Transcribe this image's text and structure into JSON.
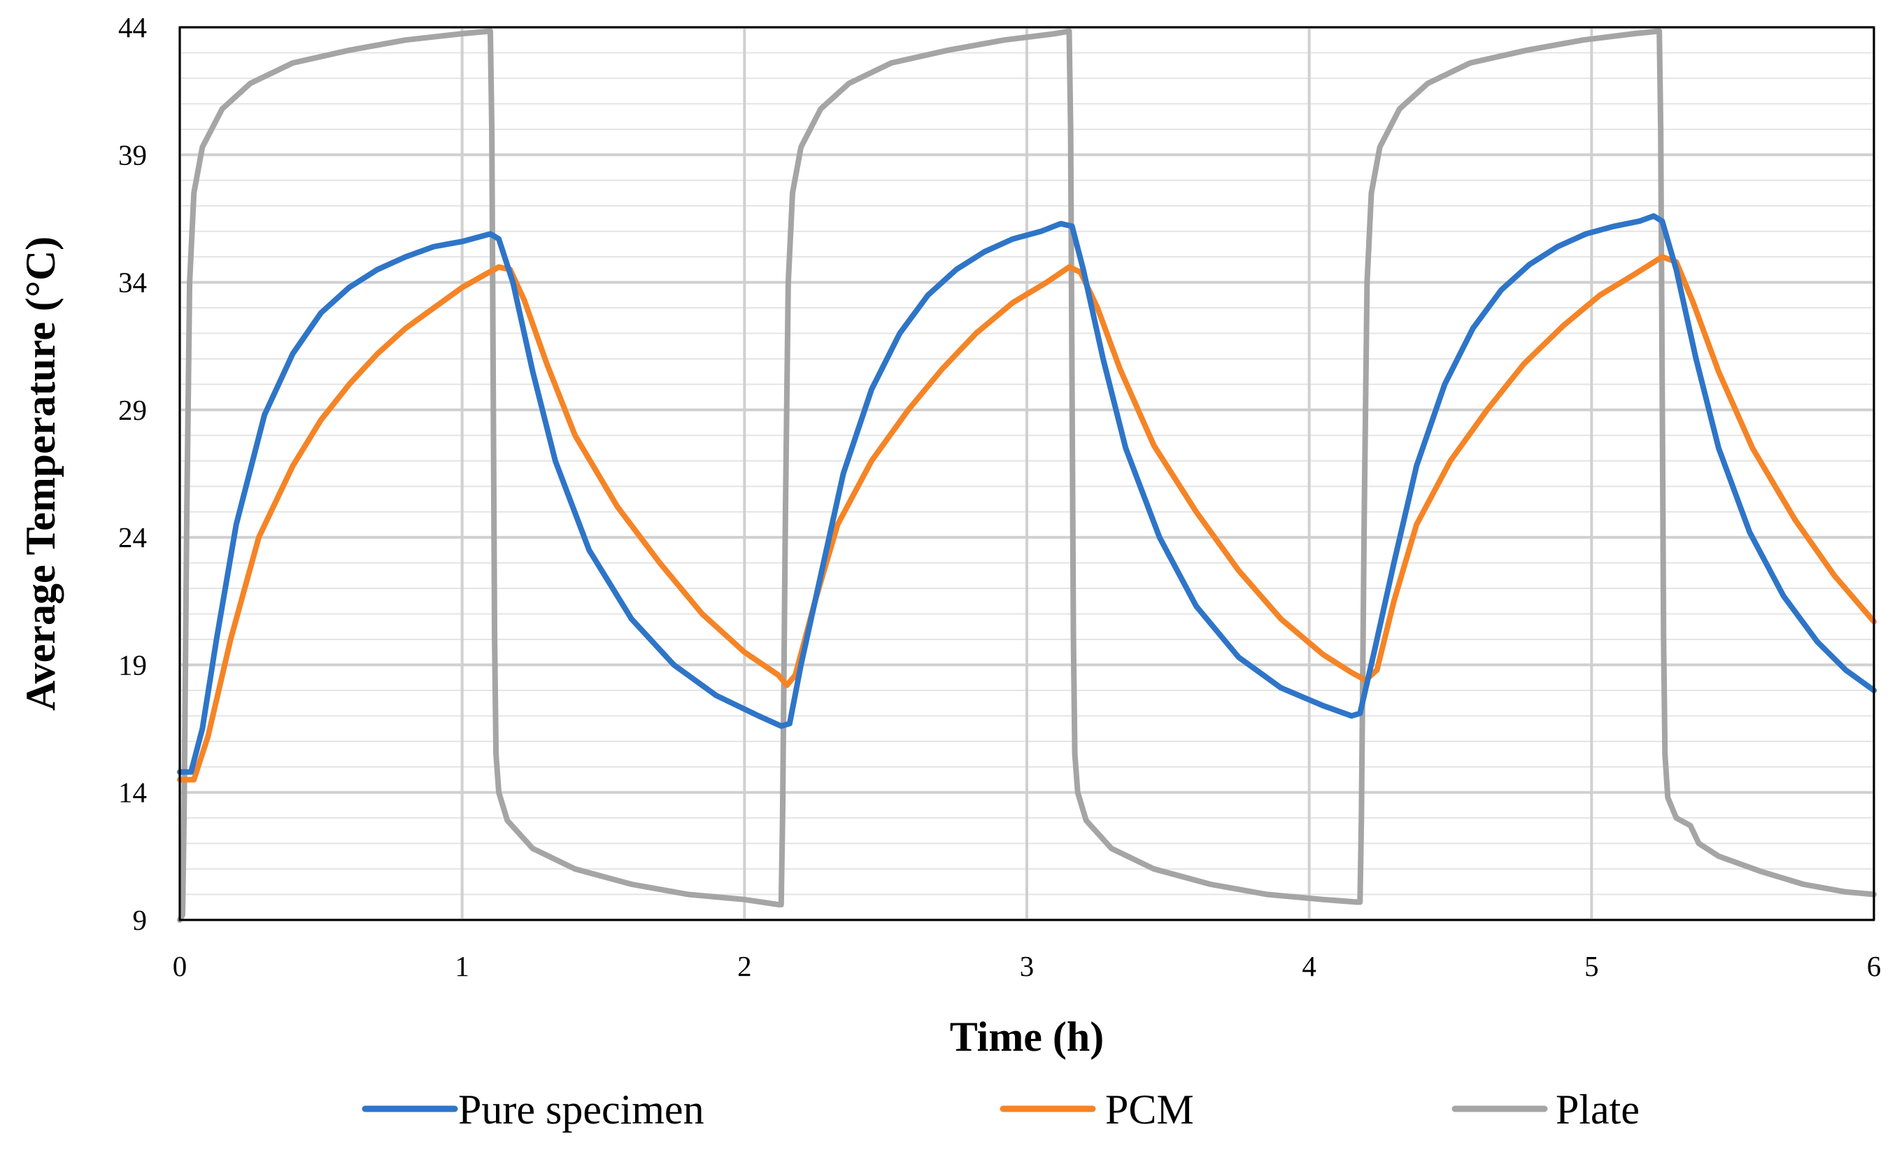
{
  "chart_data": {
    "type": "line",
    "title": "",
    "xlabel": "Time (h)",
    "ylabel": "Average Temperature (°C)",
    "xlim": [
      0,
      6
    ],
    "ylim": [
      9,
      44
    ],
    "xticks": [
      "0",
      "1",
      "2",
      "3",
      "4",
      "5",
      "6"
    ],
    "yticks": [
      "9",
      "14",
      "19",
      "24",
      "29",
      "34",
      "39",
      "44"
    ],
    "minor_y_step": 1,
    "grid": true,
    "legend_position": "bottom",
    "series": [
      {
        "name": "Pure specimen",
        "color": "#2E75C8",
        "points": [
          [
            0,
            14.8
          ],
          [
            0.04,
            14.8
          ],
          [
            0.08,
            16.5
          ],
          [
            0.13,
            20
          ],
          [
            0.2,
            24.5
          ],
          [
            0.3,
            28.8
          ],
          [
            0.4,
            31.2
          ],
          [
            0.5,
            32.8
          ],
          [
            0.6,
            33.8
          ],
          [
            0.7,
            34.5
          ],
          [
            0.8,
            35.0
          ],
          [
            0.9,
            35.4
          ],
          [
            1.0,
            35.6
          ],
          [
            1.05,
            35.75
          ],
          [
            1.1,
            35.9
          ],
          [
            1.13,
            35.7
          ],
          [
            1.18,
            34.0
          ],
          [
            1.25,
            30.5
          ],
          [
            1.33,
            27.0
          ],
          [
            1.45,
            23.5
          ],
          [
            1.6,
            20.8
          ],
          [
            1.75,
            19.0
          ],
          [
            1.9,
            17.8
          ],
          [
            2.05,
            17.0
          ],
          [
            2.13,
            16.6
          ],
          [
            2.16,
            16.7
          ],
          [
            2.2,
            19.0
          ],
          [
            2.27,
            22.5
          ],
          [
            2.35,
            26.5
          ],
          [
            2.45,
            29.8
          ],
          [
            2.55,
            32.0
          ],
          [
            2.65,
            33.5
          ],
          [
            2.75,
            34.5
          ],
          [
            2.85,
            35.2
          ],
          [
            2.95,
            35.7
          ],
          [
            3.05,
            36.0
          ],
          [
            3.12,
            36.3
          ],
          [
            3.16,
            36.2
          ],
          [
            3.2,
            34.5
          ],
          [
            3.27,
            31.0
          ],
          [
            3.35,
            27.5
          ],
          [
            3.47,
            24.0
          ],
          [
            3.6,
            21.3
          ],
          [
            3.75,
            19.3
          ],
          [
            3.9,
            18.1
          ],
          [
            4.05,
            17.4
          ],
          [
            4.15,
            17.0
          ],
          [
            4.18,
            17.1
          ],
          [
            4.23,
            19.5
          ],
          [
            4.3,
            23.0
          ],
          [
            4.38,
            26.8
          ],
          [
            4.48,
            30.0
          ],
          [
            4.58,
            32.2
          ],
          [
            4.68,
            33.7
          ],
          [
            4.78,
            34.7
          ],
          [
            4.88,
            35.4
          ],
          [
            4.98,
            35.9
          ],
          [
            5.08,
            36.2
          ],
          [
            5.17,
            36.4
          ],
          [
            5.22,
            36.6
          ],
          [
            5.25,
            36.4
          ],
          [
            5.3,
            34.5
          ],
          [
            5.37,
            31.0
          ],
          [
            5.45,
            27.5
          ],
          [
            5.56,
            24.2
          ],
          [
            5.68,
            21.7
          ],
          [
            5.8,
            19.9
          ],
          [
            5.9,
            18.8
          ],
          [
            6.0,
            18.0
          ]
        ]
      },
      {
        "name": "PCM",
        "color": "#F58426",
        "points": [
          [
            0,
            14.5
          ],
          [
            0.05,
            14.5
          ],
          [
            0.1,
            16.2
          ],
          [
            0.18,
            20.0
          ],
          [
            0.28,
            24.0
          ],
          [
            0.4,
            26.8
          ],
          [
            0.5,
            28.6
          ],
          [
            0.6,
            30.0
          ],
          [
            0.7,
            31.2
          ],
          [
            0.8,
            32.2
          ],
          [
            0.9,
            33.0
          ],
          [
            1.0,
            33.8
          ],
          [
            1.08,
            34.3
          ],
          [
            1.13,
            34.6
          ],
          [
            1.17,
            34.5
          ],
          [
            1.22,
            33.3
          ],
          [
            1.3,
            30.8
          ],
          [
            1.4,
            28.0
          ],
          [
            1.55,
            25.2
          ],
          [
            1.7,
            23.0
          ],
          [
            1.85,
            21.0
          ],
          [
            2.0,
            19.5
          ],
          [
            2.12,
            18.6
          ],
          [
            2.15,
            18.2
          ],
          [
            2.18,
            18.6
          ],
          [
            2.25,
            21.5
          ],
          [
            2.33,
            24.5
          ],
          [
            2.45,
            27.0
          ],
          [
            2.58,
            29.0
          ],
          [
            2.7,
            30.6
          ],
          [
            2.82,
            32.0
          ],
          [
            2.95,
            33.2
          ],
          [
            3.07,
            34.0
          ],
          [
            3.15,
            34.6
          ],
          [
            3.19,
            34.4
          ],
          [
            3.25,
            33.0
          ],
          [
            3.33,
            30.6
          ],
          [
            3.45,
            27.6
          ],
          [
            3.6,
            25.0
          ],
          [
            3.75,
            22.7
          ],
          [
            3.9,
            20.8
          ],
          [
            4.05,
            19.4
          ],
          [
            4.15,
            18.7
          ],
          [
            4.2,
            18.4
          ],
          [
            4.24,
            18.8
          ],
          [
            4.3,
            21.5
          ],
          [
            4.38,
            24.5
          ],
          [
            4.5,
            27.0
          ],
          [
            4.63,
            29.0
          ],
          [
            4.76,
            30.8
          ],
          [
            4.9,
            32.3
          ],
          [
            5.03,
            33.5
          ],
          [
            5.15,
            34.3
          ],
          [
            5.25,
            35.0
          ],
          [
            5.3,
            34.8
          ],
          [
            5.36,
            33.2
          ],
          [
            5.45,
            30.5
          ],
          [
            5.57,
            27.5
          ],
          [
            5.72,
            24.7
          ],
          [
            5.86,
            22.5
          ],
          [
            6.0,
            20.7
          ]
        ]
      },
      {
        "name": "Plate",
        "color": "#A5A5A5",
        "points": [
          [
            0,
            9.0
          ],
          [
            0.01,
            9.2
          ],
          [
            0.015,
            13.0
          ],
          [
            0.025,
            25.0
          ],
          [
            0.035,
            34.0
          ],
          [
            0.05,
            37.5
          ],
          [
            0.08,
            39.3
          ],
          [
            0.15,
            40.8
          ],
          [
            0.25,
            41.8
          ],
          [
            0.4,
            42.6
          ],
          [
            0.6,
            43.1
          ],
          [
            0.8,
            43.5
          ],
          [
            1.0,
            43.75
          ],
          [
            1.1,
            43.85
          ],
          [
            1.105,
            40.0
          ],
          [
            1.11,
            30.0
          ],
          [
            1.115,
            20.0
          ],
          [
            1.12,
            15.5
          ],
          [
            1.13,
            14.0
          ],
          [
            1.16,
            12.9
          ],
          [
            1.25,
            11.8
          ],
          [
            1.4,
            11.0
          ],
          [
            1.6,
            10.4
          ],
          [
            1.8,
            10.0
          ],
          [
            2.0,
            9.8
          ],
          [
            2.12,
            9.6
          ],
          [
            2.13,
            9.6
          ],
          [
            2.135,
            13.0
          ],
          [
            2.145,
            25.0
          ],
          [
            2.155,
            34.0
          ],
          [
            2.17,
            37.5
          ],
          [
            2.2,
            39.3
          ],
          [
            2.27,
            40.8
          ],
          [
            2.37,
            41.8
          ],
          [
            2.52,
            42.6
          ],
          [
            2.72,
            43.1
          ],
          [
            2.92,
            43.5
          ],
          [
            3.1,
            43.75
          ],
          [
            3.15,
            43.85
          ],
          [
            3.155,
            40.0
          ],
          [
            3.16,
            30.0
          ],
          [
            3.165,
            20.0
          ],
          [
            3.17,
            15.5
          ],
          [
            3.18,
            14.0
          ],
          [
            3.21,
            12.9
          ],
          [
            3.3,
            11.8
          ],
          [
            3.45,
            11.0
          ],
          [
            3.65,
            10.4
          ],
          [
            3.85,
            10.0
          ],
          [
            4.05,
            9.8
          ],
          [
            4.17,
            9.7
          ],
          [
            4.18,
            9.7
          ],
          [
            4.185,
            13.0
          ],
          [
            4.195,
            25.0
          ],
          [
            4.205,
            34.0
          ],
          [
            4.22,
            37.5
          ],
          [
            4.25,
            39.3
          ],
          [
            4.32,
            40.8
          ],
          [
            4.42,
            41.8
          ],
          [
            4.57,
            42.6
          ],
          [
            4.77,
            43.1
          ],
          [
            4.97,
            43.5
          ],
          [
            5.15,
            43.75
          ],
          [
            5.24,
            43.85
          ],
          [
            5.245,
            40.0
          ],
          [
            5.25,
            30.0
          ],
          [
            5.255,
            20.0
          ],
          [
            5.26,
            15.5
          ],
          [
            5.27,
            13.8
          ],
          [
            5.3,
            13.0
          ],
          [
            5.35,
            12.7
          ],
          [
            5.38,
            12.0
          ],
          [
            5.45,
            11.5
          ],
          [
            5.6,
            10.9
          ],
          [
            5.75,
            10.4
          ],
          [
            5.9,
            10.1
          ],
          [
            6.0,
            10.0
          ]
        ]
      }
    ]
  }
}
